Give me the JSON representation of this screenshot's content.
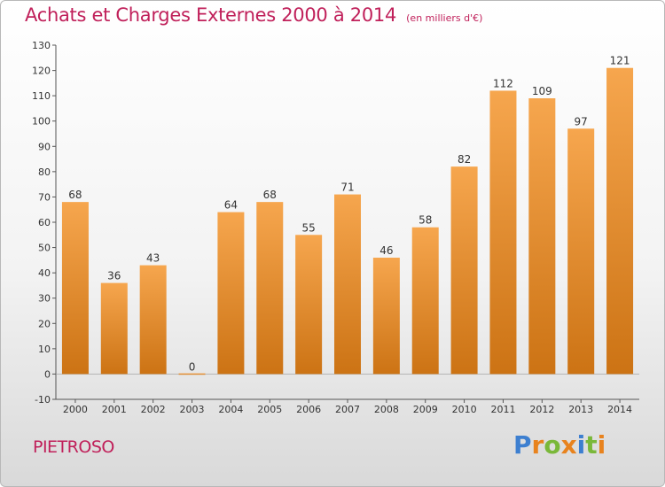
{
  "header": {
    "title": "Achats et Charges Externes 2000 à 2014",
    "subtitle": "(en milliers d'€)"
  },
  "footer": {
    "commune": "PIETROSO",
    "logo_text": "Proxiti"
  },
  "colors": {
    "title": "#c0205a",
    "bar_light": "#f6a64e",
    "bar_dark": "#cc7314",
    "axis": "#555555"
  },
  "logo_letters": [
    {
      "ch": "P",
      "color": "#3d7fd0"
    },
    {
      "ch": "r",
      "color": "#e8831e"
    },
    {
      "ch": "o",
      "color": "#7ab83a"
    },
    {
      "ch": "x",
      "color": "#e8831e"
    },
    {
      "ch": "i",
      "color": "#3d7fd0"
    },
    {
      "ch": "t",
      "color": "#7ab83a"
    },
    {
      "ch": "i",
      "color": "#e8831e"
    }
  ],
  "chart_data": {
    "type": "bar",
    "categories": [
      "2000",
      "2001",
      "2002",
      "2003",
      "2004",
      "2005",
      "2006",
      "2007",
      "2008",
      "2009",
      "2010",
      "2011",
      "2012",
      "2013",
      "2014"
    ],
    "values": [
      68,
      36,
      43,
      0,
      64,
      68,
      55,
      71,
      46,
      58,
      82,
      112,
      109,
      97,
      121
    ],
    "ylim": [
      -10,
      130
    ],
    "yticks": [
      -10,
      0,
      10,
      20,
      30,
      40,
      50,
      60,
      70,
      80,
      90,
      100,
      110,
      120,
      130
    ],
    "grid": false
  }
}
